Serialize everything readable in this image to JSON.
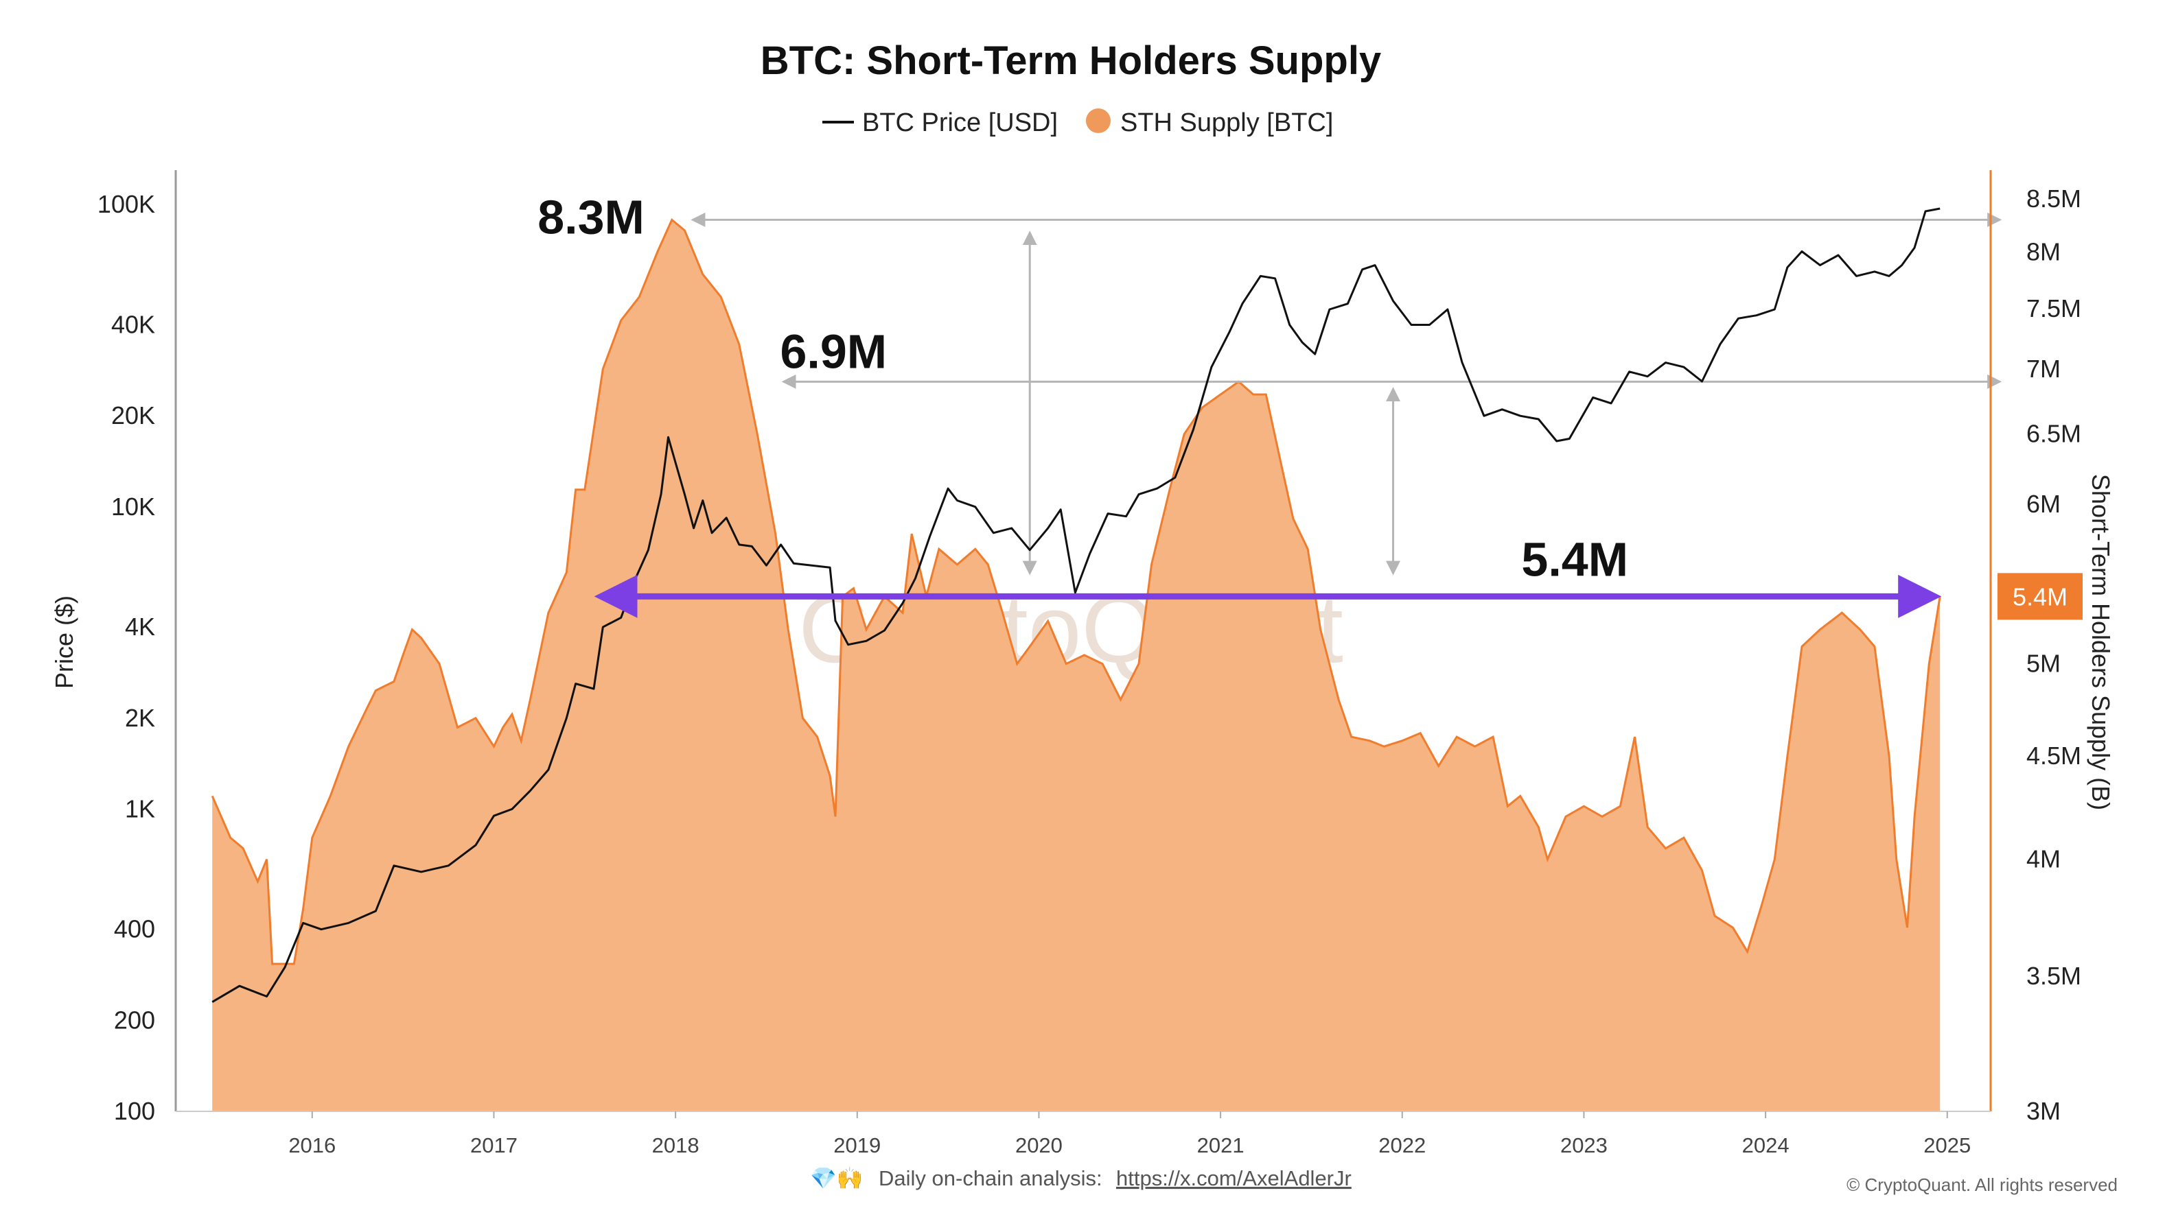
{
  "colors": {
    "supply_fill": "#f5b482",
    "supply_line": "#ef7d2d",
    "price_line": "#111111",
    "arrow_purple": "#7b3fe4",
    "guide_gray": "#b5b5b5",
    "badge": "#ef7d2d"
  },
  "chart_data": {
    "type": "area",
    "title": "BTC: Short-Term Holders Supply",
    "legend": {
      "placement": "top-center",
      "price_label": "BTC Price [USD]",
      "supply_label": "STH Supply [BTC]"
    },
    "x_ticks": [
      "2016",
      "2017",
      "2018",
      "2019",
      "2020",
      "2021",
      "2022",
      "2023",
      "2024",
      "2025"
    ],
    "x_range": [
      2015.4,
      2025.05
    ],
    "y_left": {
      "label": "Price ($)",
      "scale": "log",
      "range": [
        100,
        130000
      ],
      "ticks": [
        100,
        200,
        400,
        1000,
        2000,
        4000,
        10000,
        20000,
        40000,
        100000
      ],
      "tick_labels": [
        "100",
        "200",
        "400",
        "1K",
        "2K",
        "4K",
        "10K",
        "20K",
        "40K",
        "100K"
      ]
    },
    "y_right": {
      "label": "Short-Term Holders Supply (B)",
      "scale": "log",
      "range": [
        3.0,
        8.5
      ],
      "ticks": [
        3.0,
        3.5,
        4.0,
        4.5,
        5.0,
        6.0,
        6.5,
        7.0,
        7.5,
        8.0,
        8.5
      ],
      "tick_labels": [
        "3M",
        "3.5M",
        "4M",
        "4.5M",
        "5M",
        "6M",
        "6.5M",
        "7M",
        "7.5M",
        "8M",
        "8.5M"
      ]
    },
    "series": [
      {
        "name": "BTC Price [USD]",
        "axis": "left",
        "points": [
          [
            2015.45,
            230
          ],
          [
            2015.6,
            260
          ],
          [
            2015.75,
            240
          ],
          [
            2015.85,
            300
          ],
          [
            2015.95,
            420
          ],
          [
            2016.05,
            400
          ],
          [
            2016.2,
            420
          ],
          [
            2016.35,
            460
          ],
          [
            2016.45,
            650
          ],
          [
            2016.6,
            620
          ],
          [
            2016.75,
            650
          ],
          [
            2016.9,
            760
          ],
          [
            2017.0,
            950
          ],
          [
            2017.1,
            1000
          ],
          [
            2017.2,
            1150
          ],
          [
            2017.3,
            1350
          ],
          [
            2017.4,
            2000
          ],
          [
            2017.45,
            2600
          ],
          [
            2017.55,
            2500
          ],
          [
            2017.6,
            4000
          ],
          [
            2017.7,
            4300
          ],
          [
            2017.78,
            5800
          ],
          [
            2017.85,
            7200
          ],
          [
            2017.92,
            11000
          ],
          [
            2017.96,
            17000
          ],
          [
            2018.0,
            14000
          ],
          [
            2018.05,
            11000
          ],
          [
            2018.1,
            8500
          ],
          [
            2018.15,
            10500
          ],
          [
            2018.2,
            8200
          ],
          [
            2018.28,
            9200
          ],
          [
            2018.35,
            7500
          ],
          [
            2018.42,
            7400
          ],
          [
            2018.5,
            6400
          ],
          [
            2018.58,
            7500
          ],
          [
            2018.65,
            6500
          ],
          [
            2018.75,
            6400
          ],
          [
            2018.85,
            6300
          ],
          [
            2018.88,
            4200
          ],
          [
            2018.95,
            3500
          ],
          [
            2019.05,
            3600
          ],
          [
            2019.15,
            3900
          ],
          [
            2019.25,
            4800
          ],
          [
            2019.32,
            5800
          ],
          [
            2019.4,
            8000
          ],
          [
            2019.5,
            11500
          ],
          [
            2019.55,
            10500
          ],
          [
            2019.65,
            10000
          ],
          [
            2019.75,
            8200
          ],
          [
            2019.85,
            8500
          ],
          [
            2019.95,
            7200
          ],
          [
            2020.05,
            8500
          ],
          [
            2020.12,
            9800
          ],
          [
            2020.2,
            5200
          ],
          [
            2020.28,
            7000
          ],
          [
            2020.38,
            9500
          ],
          [
            2020.48,
            9300
          ],
          [
            2020.55,
            11000
          ],
          [
            2020.65,
            11500
          ],
          [
            2020.75,
            12500
          ],
          [
            2020.85,
            18000
          ],
          [
            2020.95,
            29000
          ],
          [
            2021.05,
            38000
          ],
          [
            2021.12,
            47000
          ],
          [
            2021.22,
            58000
          ],
          [
            2021.3,
            57000
          ],
          [
            2021.38,
            40000
          ],
          [
            2021.45,
            35000
          ],
          [
            2021.52,
            32000
          ],
          [
            2021.6,
            45000
          ],
          [
            2021.7,
            47000
          ],
          [
            2021.78,
            61000
          ],
          [
            2021.85,
            63000
          ],
          [
            2021.95,
            48000
          ],
          [
            2022.05,
            40000
          ],
          [
            2022.15,
            40000
          ],
          [
            2022.25,
            45000
          ],
          [
            2022.33,
            30000
          ],
          [
            2022.45,
            20000
          ],
          [
            2022.55,
            21000
          ],
          [
            2022.65,
            20000
          ],
          [
            2022.75,
            19500
          ],
          [
            2022.85,
            16500
          ],
          [
            2022.92,
            16800
          ],
          [
            2023.05,
            23000
          ],
          [
            2023.15,
            22000
          ],
          [
            2023.25,
            28000
          ],
          [
            2023.35,
            27000
          ],
          [
            2023.45,
            30000
          ],
          [
            2023.55,
            29000
          ],
          [
            2023.65,
            26000
          ],
          [
            2023.75,
            34500
          ],
          [
            2023.85,
            42000
          ],
          [
            2023.95,
            43000
          ],
          [
            2024.05,
            45000
          ],
          [
            2024.12,
            62000
          ],
          [
            2024.2,
            70000
          ],
          [
            2024.3,
            63000
          ],
          [
            2024.4,
            68000
          ],
          [
            2024.5,
            58000
          ],
          [
            2024.6,
            60000
          ],
          [
            2024.68,
            58000
          ],
          [
            2024.75,
            63000
          ],
          [
            2024.82,
            72000
          ],
          [
            2024.88,
            95000
          ],
          [
            2024.96,
            97000
          ]
        ]
      },
      {
        "name": "STH Supply [BTC]",
        "axis": "right",
        "points": [
          [
            2015.45,
            4.3
          ],
          [
            2015.55,
            4.1
          ],
          [
            2015.62,
            4.05
          ],
          [
            2015.7,
            3.9
          ],
          [
            2015.75,
            4.0
          ],
          [
            2015.78,
            3.55
          ],
          [
            2015.9,
            3.55
          ],
          [
            2015.95,
            3.78
          ],
          [
            2016.0,
            4.1
          ],
          [
            2016.1,
            4.3
          ],
          [
            2016.2,
            4.55
          ],
          [
            2016.3,
            4.75
          ],
          [
            2016.35,
            4.85
          ],
          [
            2016.45,
            4.9
          ],
          [
            2016.5,
            5.05
          ],
          [
            2016.55,
            5.2
          ],
          [
            2016.6,
            5.15
          ],
          [
            2016.7,
            5.0
          ],
          [
            2016.8,
            4.65
          ],
          [
            2016.9,
            4.7
          ],
          [
            2017.0,
            4.55
          ],
          [
            2017.05,
            4.65
          ],
          [
            2017.1,
            4.72
          ],
          [
            2017.15,
            4.58
          ],
          [
            2017.2,
            4.8
          ],
          [
            2017.3,
            5.3
          ],
          [
            2017.4,
            5.55
          ],
          [
            2017.45,
            6.1
          ],
          [
            2017.5,
            6.1
          ],
          [
            2017.6,
            7.0
          ],
          [
            2017.7,
            7.4
          ],
          [
            2017.8,
            7.6
          ],
          [
            2017.9,
            8.0
          ],
          [
            2017.98,
            8.3
          ],
          [
            2018.05,
            8.2
          ],
          [
            2018.15,
            7.8
          ],
          [
            2018.25,
            7.6
          ],
          [
            2018.35,
            7.2
          ],
          [
            2018.45,
            6.5
          ],
          [
            2018.55,
            5.8
          ],
          [
            2018.62,
            5.2
          ],
          [
            2018.7,
            4.7
          ],
          [
            2018.78,
            4.6
          ],
          [
            2018.85,
            4.4
          ],
          [
            2018.88,
            4.2
          ],
          [
            2018.92,
            5.4
          ],
          [
            2018.98,
            5.45
          ],
          [
            2019.05,
            5.2
          ],
          [
            2019.15,
            5.4
          ],
          [
            2019.25,
            5.3
          ],
          [
            2019.3,
            5.8
          ],
          [
            2019.38,
            5.4
          ],
          [
            2019.45,
            5.7
          ],
          [
            2019.55,
            5.6
          ],
          [
            2019.65,
            5.7
          ],
          [
            2019.72,
            5.6
          ],
          [
            2019.8,
            5.3
          ],
          [
            2019.88,
            5.0
          ],
          [
            2019.95,
            5.1
          ],
          [
            2020.05,
            5.25
          ],
          [
            2020.15,
            5.0
          ],
          [
            2020.25,
            5.05
          ],
          [
            2020.35,
            5.0
          ],
          [
            2020.45,
            4.8
          ],
          [
            2020.55,
            5.0
          ],
          [
            2020.62,
            5.6
          ],
          [
            2020.72,
            6.1
          ],
          [
            2020.8,
            6.5
          ],
          [
            2020.9,
            6.7
          ],
          [
            2021.0,
            6.8
          ],
          [
            2021.1,
            6.9
          ],
          [
            2021.18,
            6.8
          ],
          [
            2021.25,
            6.8
          ],
          [
            2021.33,
            6.3
          ],
          [
            2021.4,
            5.9
          ],
          [
            2021.48,
            5.7
          ],
          [
            2021.55,
            5.2
          ],
          [
            2021.65,
            4.8
          ],
          [
            2021.72,
            4.6
          ],
          [
            2021.82,
            4.58
          ],
          [
            2021.9,
            4.55
          ],
          [
            2022.0,
            4.58
          ],
          [
            2022.1,
            4.62
          ],
          [
            2022.2,
            4.45
          ],
          [
            2022.3,
            4.6
          ],
          [
            2022.4,
            4.55
          ],
          [
            2022.5,
            4.6
          ],
          [
            2022.58,
            4.25
          ],
          [
            2022.65,
            4.3
          ],
          [
            2022.75,
            4.15
          ],
          [
            2022.8,
            4.0
          ],
          [
            2022.9,
            4.2
          ],
          [
            2023.0,
            4.25
          ],
          [
            2023.1,
            4.2
          ],
          [
            2023.2,
            4.25
          ],
          [
            2023.28,
            4.6
          ],
          [
            2023.35,
            4.15
          ],
          [
            2023.45,
            4.05
          ],
          [
            2023.55,
            4.1
          ],
          [
            2023.65,
            3.95
          ],
          [
            2023.72,
            3.75
          ],
          [
            2023.82,
            3.7
          ],
          [
            2023.9,
            3.6
          ],
          [
            2023.98,
            3.8
          ],
          [
            2024.05,
            4.0
          ],
          [
            2024.12,
            4.5
          ],
          [
            2024.2,
            5.1
          ],
          [
            2024.3,
            5.2
          ],
          [
            2024.42,
            5.3
          ],
          [
            2024.52,
            5.2
          ],
          [
            2024.6,
            5.1
          ],
          [
            2024.68,
            4.5
          ],
          [
            2024.72,
            4.0
          ],
          [
            2024.78,
            3.7
          ],
          [
            2024.82,
            4.2
          ],
          [
            2024.9,
            5.0
          ],
          [
            2024.96,
            5.4
          ]
        ]
      }
    ],
    "annotations": [
      {
        "text": "8.3M",
        "x": 2017.98,
        "value": 8.3
      },
      {
        "text": "6.9M",
        "x": 2018.5,
        "value": 6.9
      },
      {
        "text": "5.4M",
        "x": 2022.95,
        "value": 5.4
      }
    ],
    "range_arrow": {
      "x_start": 2017.6,
      "x_end": 2024.92,
      "value": 5.4
    },
    "current_value_badge": {
      "text": "5.4M",
      "value": 5.4
    },
    "watermark": "CryptoQuant"
  },
  "footer": {
    "emoji": "💎🙌",
    "prefix": "Daily on-chain analysis: ",
    "link_text": "https://x.com/AxelAdlerJr",
    "copyright": "© CryptoQuant. All rights reserved"
  }
}
